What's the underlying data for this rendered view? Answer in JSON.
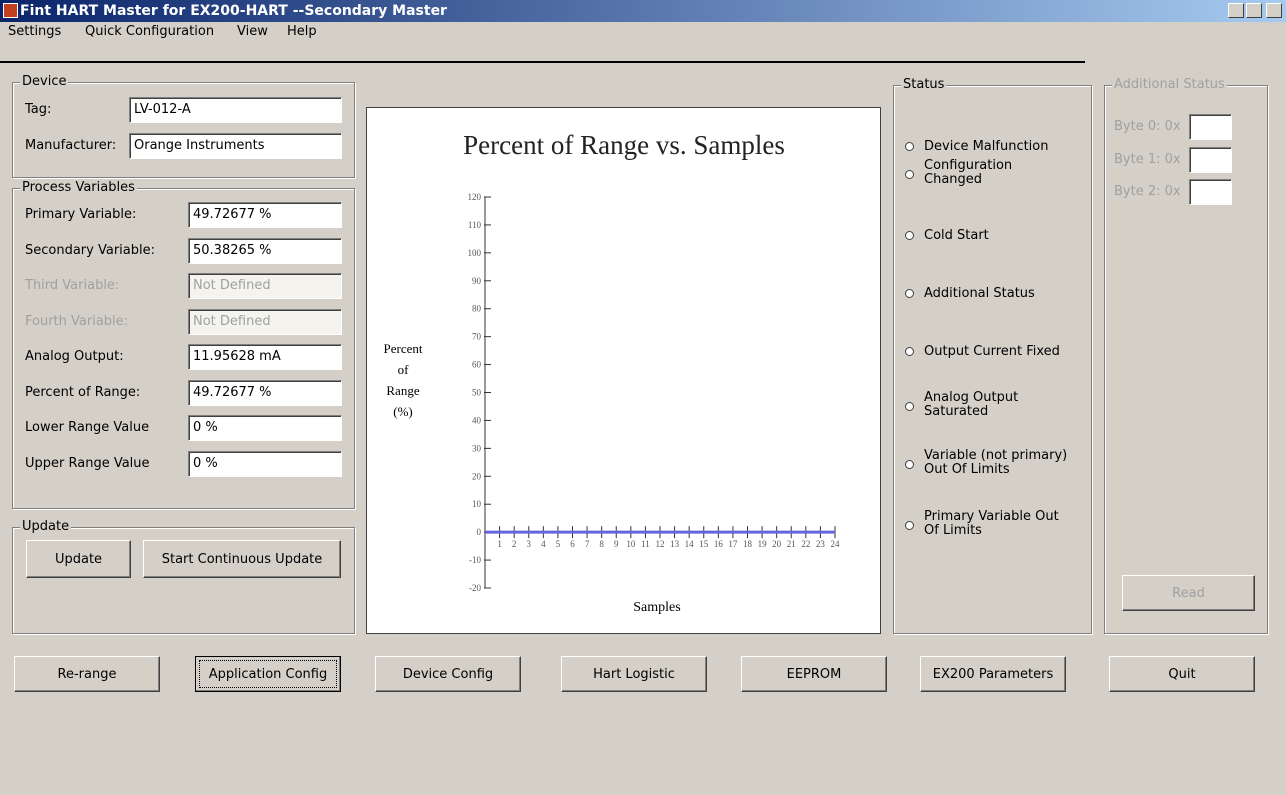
{
  "window": {
    "title": "Fint HART Master for EX200-HART --Secondary Master"
  },
  "menu": [
    "Settings",
    "Quick Configuration",
    "View",
    "Help"
  ],
  "device": {
    "legend": "Device",
    "fields": [
      {
        "label": "Tag:",
        "value": "LV-012-A"
      },
      {
        "label": "Manufacturer:",
        "value": "Orange Instruments"
      }
    ]
  },
  "process_variables": {
    "legend": "Process Variables",
    "fields": [
      {
        "label": "Primary Variable:",
        "value": "49.72677 %",
        "enabled": true
      },
      {
        "label": "Secondary Variable:",
        "value": "50.38265 %",
        "enabled": true
      },
      {
        "label": "Third Variable:",
        "value": "Not Defined",
        "enabled": false
      },
      {
        "label": "Fourth Variable:",
        "value": "Not Defined",
        "enabled": false
      },
      {
        "label": "Analog Output:",
        "value": "11.95628 mA",
        "enabled": true
      },
      {
        "label": "Percent of Range:",
        "value": "49.72677 %",
        "enabled": true
      },
      {
        "label": "Lower Range Value",
        "value": "0 %",
        "enabled": true
      },
      {
        "label": "Upper Range Value",
        "value": "0 %",
        "enabled": true
      }
    ]
  },
  "update": {
    "legend": "Update",
    "buttons": [
      "Update",
      "Start Continuous Update"
    ]
  },
  "chart_data": {
    "type": "line",
    "title": "Percent of Range vs. Samples",
    "y_label": [
      "Percent",
      "of",
      "Range",
      "(%)"
    ],
    "x_label": "Samples",
    "x": [
      1,
      2,
      3,
      4,
      5,
      6,
      7,
      8,
      9,
      10,
      11,
      12,
      13,
      14,
      15,
      16,
      17,
      18,
      19,
      20,
      21,
      22,
      23,
      24
    ],
    "series": [
      {
        "color": "#6464e0",
        "values": [
          0,
          0,
          0,
          0,
          0,
          0,
          0,
          0,
          0,
          0,
          0,
          0,
          0,
          0,
          0,
          0,
          0,
          0,
          0,
          0,
          0,
          0,
          0,
          0
        ]
      }
    ],
    "xlim": [
      0,
      24
    ],
    "xticks": [
      1,
      2,
      3,
      4,
      5,
      6,
      7,
      8,
      9,
      10,
      11,
      12,
      13,
      14,
      15,
      16,
      17,
      18,
      19,
      20,
      21,
      22,
      23,
      24
    ],
    "ylim": [
      -20,
      120
    ],
    "yticks": [
      -20,
      -10,
      0,
      10,
      20,
      30,
      40,
      50,
      60,
      70,
      80,
      90,
      100,
      110,
      120
    ]
  },
  "status": {
    "legend": "Status",
    "items": [
      "Device Malfunction",
      "Configuration\nChanged",
      "Cold Start",
      "Additional Status",
      "Output Current Fixed",
      "Analog Output\nSaturated",
      "Variable (not primary)\nOut Of Limits",
      "Primary Variable Out\nOf Limits"
    ]
  },
  "additional_status": {
    "legend": "Additional Status",
    "fields": [
      "Byte 0: 0x",
      "Byte 1: 0x",
      "Byte 2: 0x"
    ],
    "button": "Read"
  },
  "buttons": [
    "Re-range",
    "Application Config",
    "Device Config",
    "Hart Logistic",
    "EEPROM",
    "EX200 Parameters",
    "Quit"
  ]
}
